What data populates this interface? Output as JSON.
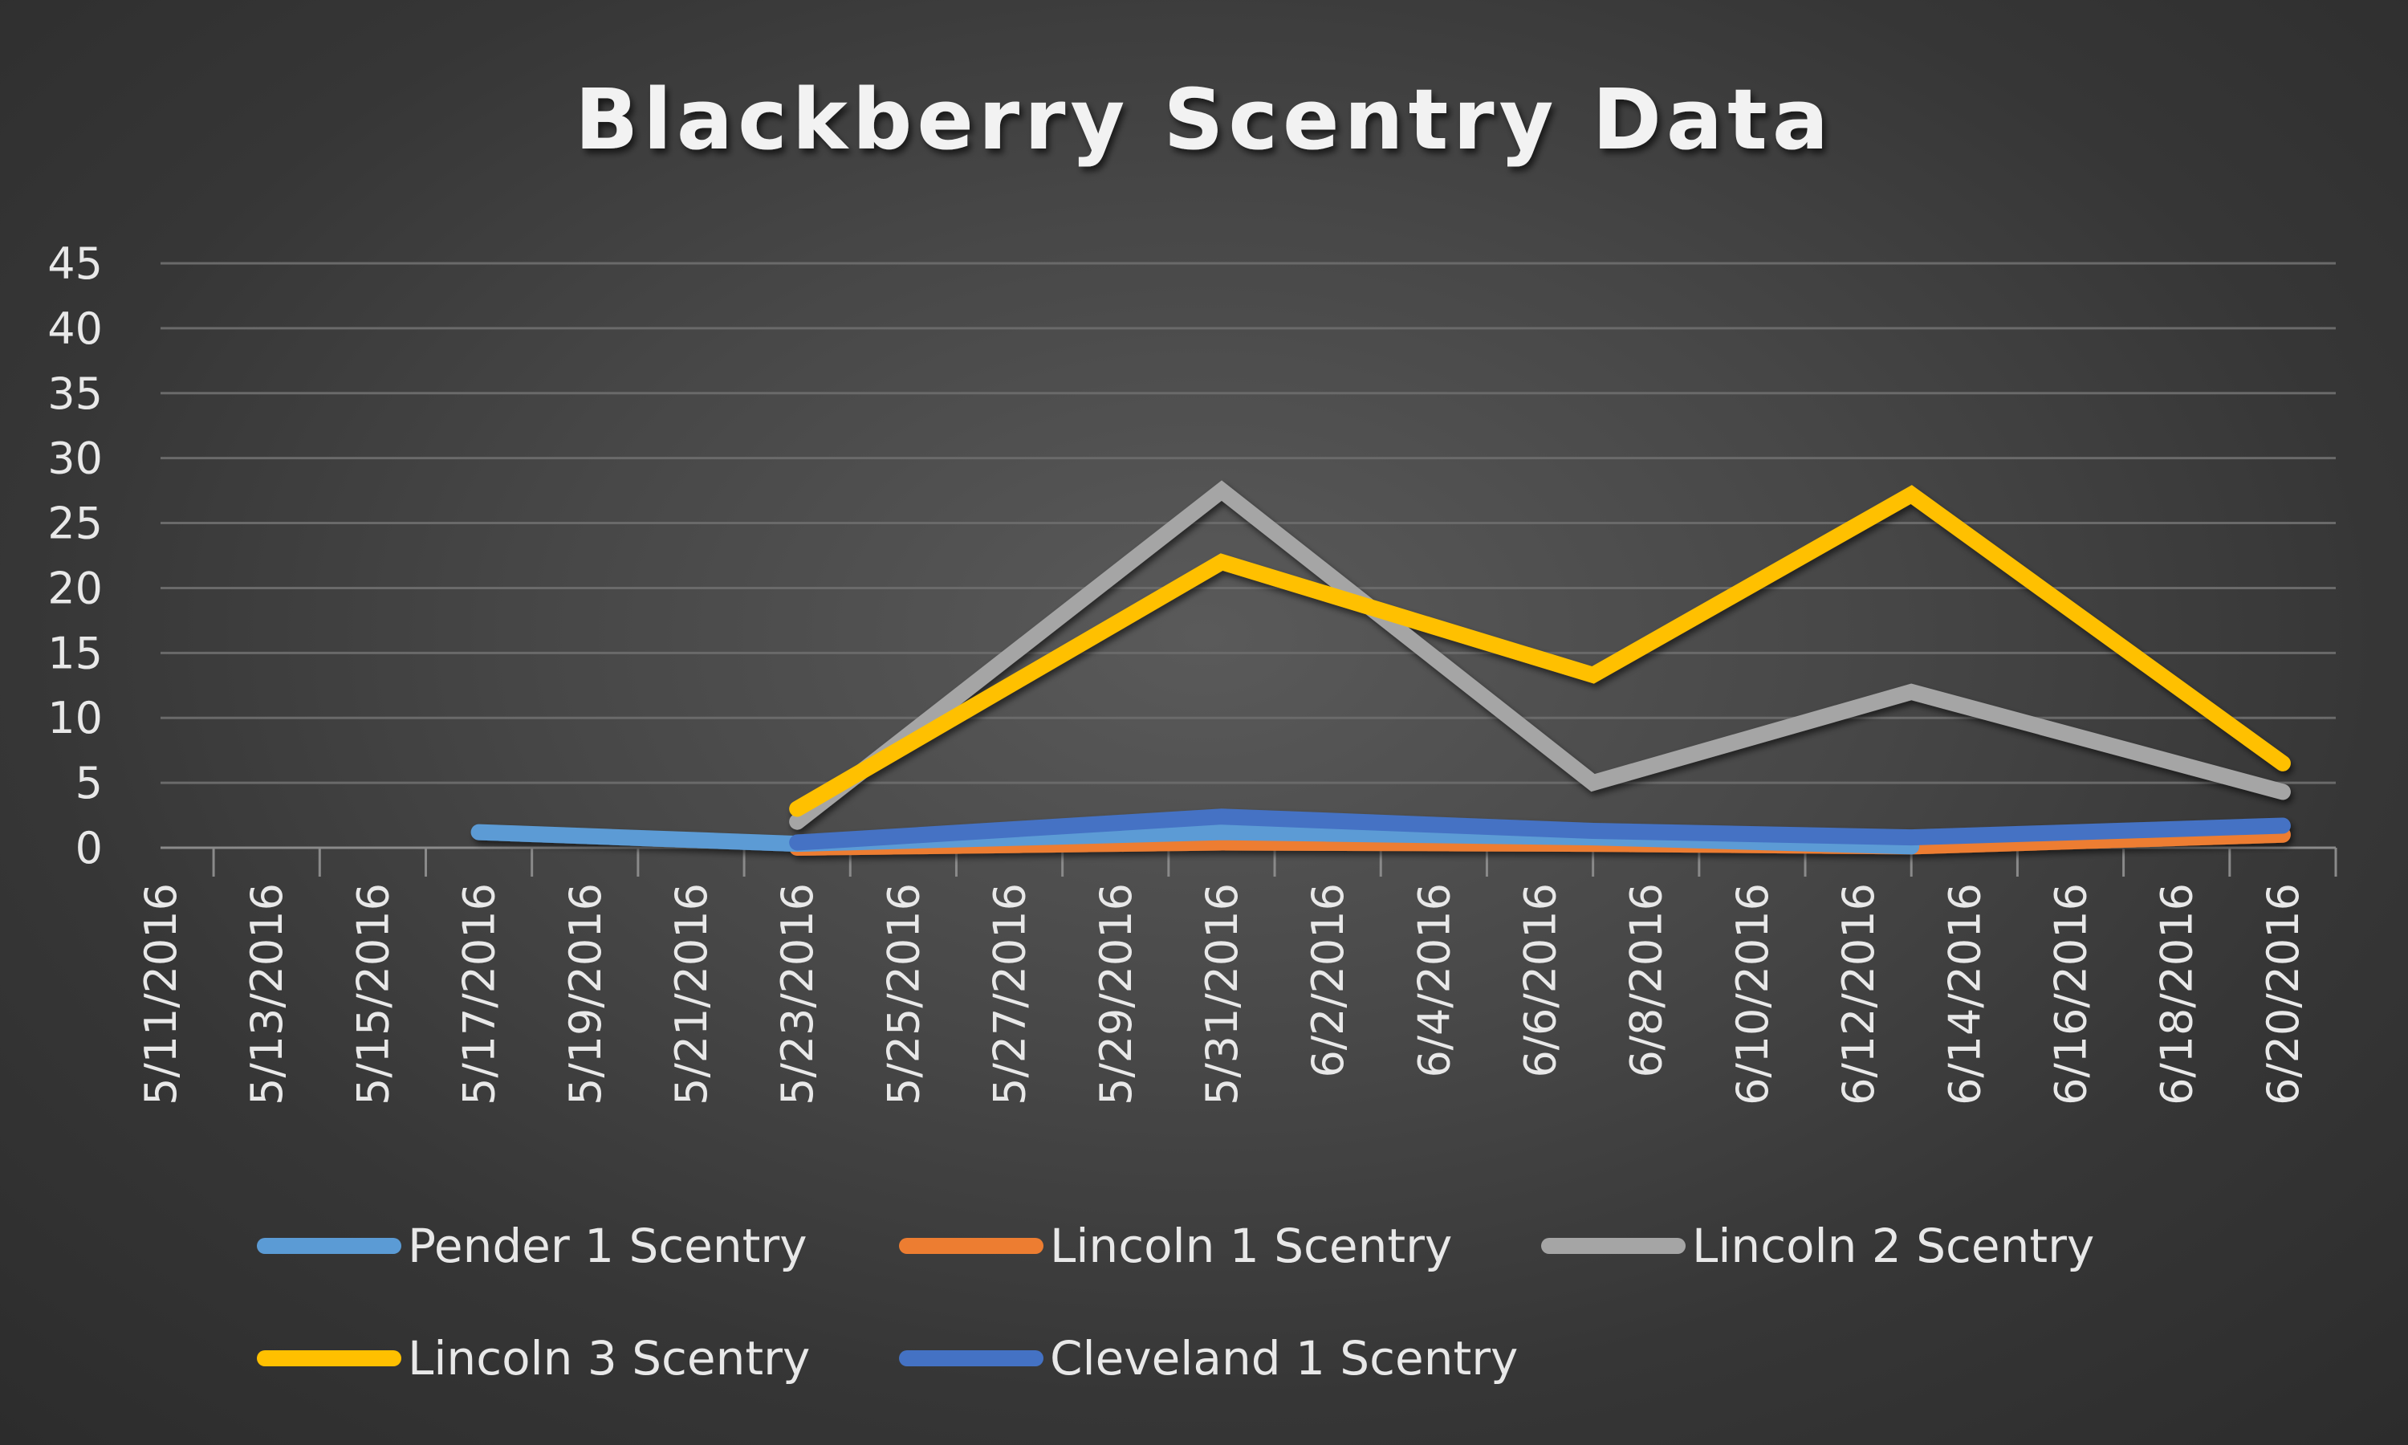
{
  "chart_data": {
    "type": "line",
    "title": "Blackberry Scentry Data",
    "xlabel": "",
    "ylabel": "",
    "ylim": [
      0,
      45
    ],
    "yticks": [
      "0",
      "5",
      "10",
      "15",
      "20",
      "25",
      "30",
      "35",
      "40",
      "45"
    ],
    "x_range": [
      "5/11/2016",
      "6/21/2016"
    ],
    "xticks": [
      "5/11/2016",
      "5/13/2016",
      "5/15/2016",
      "5/17/2016",
      "5/19/2016",
      "5/21/2016",
      "5/23/2016",
      "5/25/2016",
      "5/27/2016",
      "5/29/2016",
      "5/31/2016",
      "6/2/2016",
      "6/4/2016",
      "6/6/2016",
      "6/8/2016",
      "6/10/2016",
      "6/12/2016",
      "6/14/2016",
      "6/16/2016",
      "6/18/2016",
      "6/20/2016"
    ],
    "grid": true,
    "legend": "bottom",
    "series": [
      {
        "name": "Pender 1 Scentry",
        "color": "#5b9bd5",
        "points": [
          {
            "x": "5/17/2016",
            "y": 1.2
          },
          {
            "x": "5/23/2016",
            "y": 0.3
          },
          {
            "x": "5/31/2016",
            "y": 1.2
          },
          {
            "x": "6/7/2016",
            "y": 0.8
          },
          {
            "x": "6/13/2016",
            "y": 0.1
          }
        ]
      },
      {
        "name": "Lincoln 1 Scentry",
        "color": "#ed7d31",
        "points": [
          {
            "x": "5/23/2016",
            "y": 0
          },
          {
            "x": "5/31/2016",
            "y": 0.4
          },
          {
            "x": "6/7/2016",
            "y": 0.3
          },
          {
            "x": "6/13/2016",
            "y": 0.1
          },
          {
            "x": "6/20/2016",
            "y": 1
          }
        ]
      },
      {
        "name": "Lincoln 2 Scentry",
        "color": "#a5a5a5",
        "points": [
          {
            "x": "5/23/2016",
            "y": 2
          },
          {
            "x": "5/31/2016",
            "y": 27.5
          },
          {
            "x": "6/7/2016",
            "y": 5
          },
          {
            "x": "6/13/2016",
            "y": 12
          },
          {
            "x": "6/20/2016",
            "y": 4.3
          }
        ]
      },
      {
        "name": "Lincoln 3 Scentry",
        "color": "#ffc000",
        "points": [
          {
            "x": "5/23/2016",
            "y": 3
          },
          {
            "x": "5/31/2016",
            "y": 22
          },
          {
            "x": "6/7/2016",
            "y": 13.3
          },
          {
            "x": "6/13/2016",
            "y": 27.2
          },
          {
            "x": "6/20/2016",
            "y": 6.5
          }
        ]
      },
      {
        "name": "Cleveland 1 Scentry",
        "color": "#4472c4",
        "points": [
          {
            "x": "5/23/2016",
            "y": 0.4
          },
          {
            "x": "5/31/2016",
            "y": 2.4
          },
          {
            "x": "6/7/2016",
            "y": 1.3
          },
          {
            "x": "6/13/2016",
            "y": 0.8
          },
          {
            "x": "6/20/2016",
            "y": 1.7
          }
        ]
      }
    ]
  }
}
